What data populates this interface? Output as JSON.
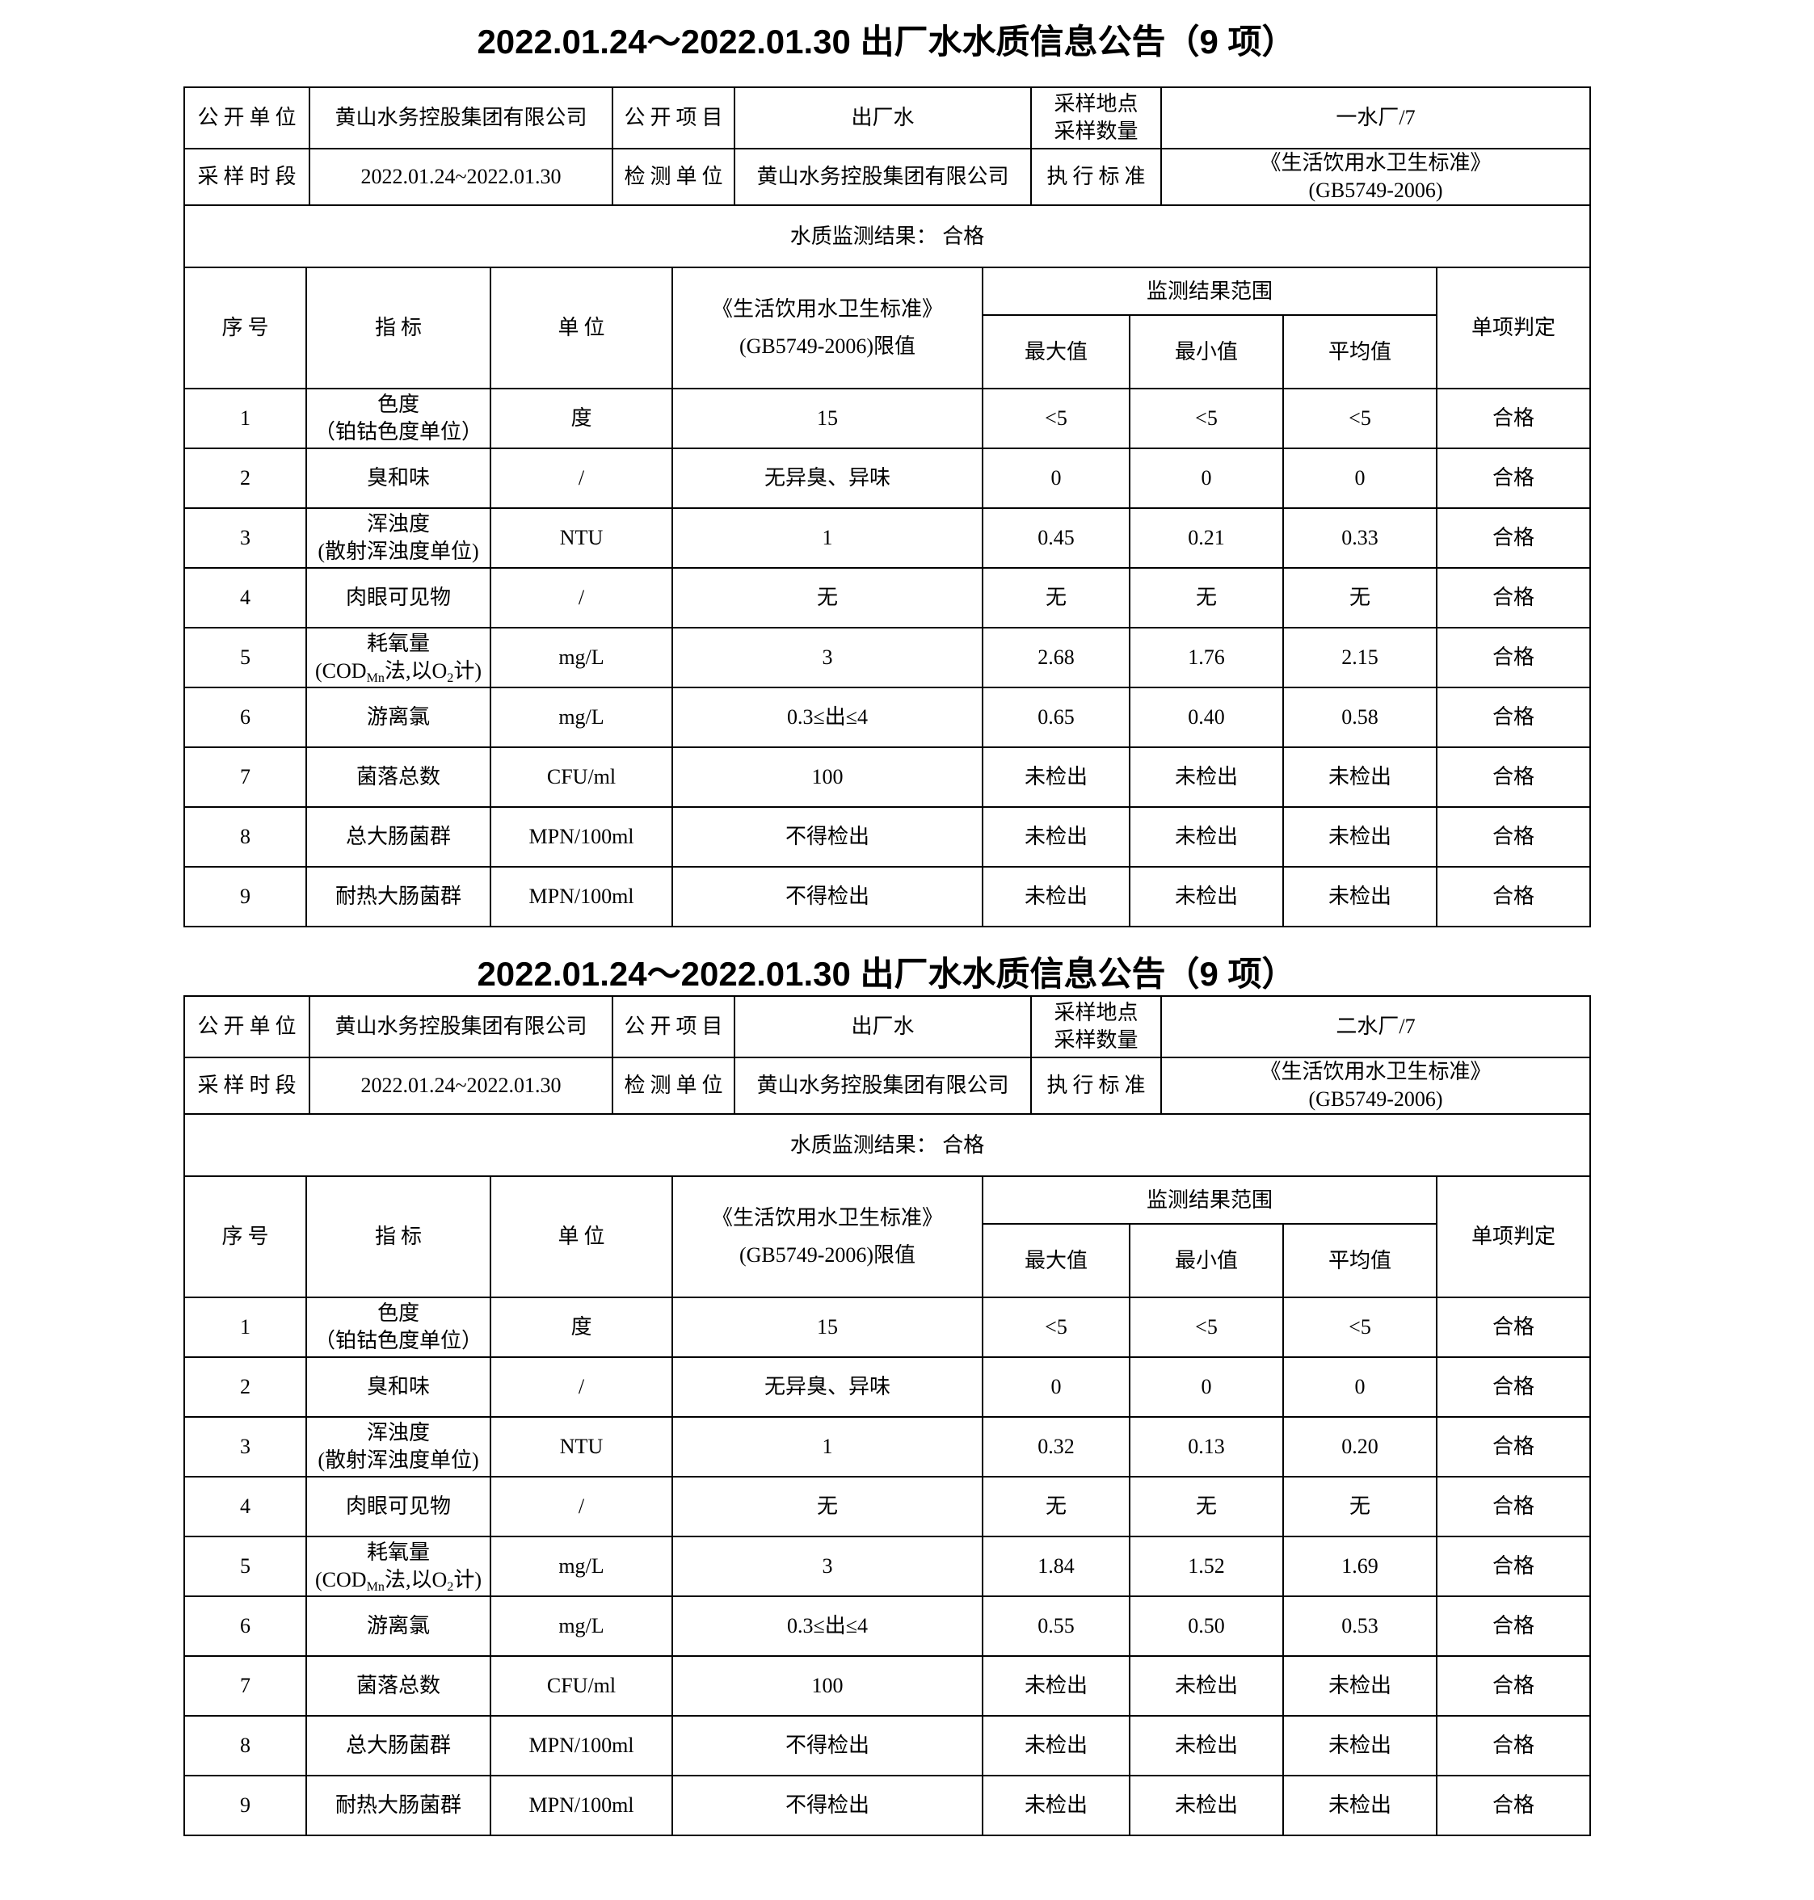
{
  "document": {
    "background_color": "#ffffff",
    "text_color": "#000000",
    "line_color": "#000000"
  },
  "tables": [
    {
      "title": "2022.01.24～2022.01.30 出厂水水质信息公告（9 项）",
      "info": {
        "public_unit_label": "公开单位",
        "public_unit": "黄山水务控股集团有限公司",
        "public_item_label": "公开项目",
        "public_item": "出厂水",
        "site_label_line1": "采样地点",
        "site_label_line2": "采样数量",
        "site_count": "一水厂/7",
        "period_label": "采样时段",
        "period": "2022.01.24~2022.01.30",
        "test_unit_label": "检测单位",
        "test_unit": "黄山水务控股集团有限公司",
        "standard_label": "执行标准",
        "standard_line1": "《生活饮用水卫生标准》",
        "standard_line2": "(GB5749-2006)"
      },
      "result_line": "水质监测结果： 合格",
      "columns": {
        "no": "序号",
        "indicator": "指标",
        "unit": "单位",
        "limit_line1": "《生活饮用水卫生标准》",
        "limit_line2": "(GB5749-2006)限值",
        "range_group": "监测结果范围",
        "max": "最大值",
        "min": "最小值",
        "avg": "平均值",
        "judgement": "单项判定"
      },
      "rows": [
        {
          "no": "1",
          "indicator": [
            "色度",
            "（铂钴色度单位）"
          ],
          "unit": "度",
          "limit": "15",
          "max": "<5",
          "min": "<5",
          "avg": "<5",
          "judge": "合格"
        },
        {
          "no": "2",
          "indicator": [
            "臭和味"
          ],
          "unit": "/",
          "limit": "无异臭、异味",
          "max": "0",
          "min": "0",
          "avg": "0",
          "judge": "合格"
        },
        {
          "no": "3",
          "indicator": [
            "浑浊度",
            "(散射浑浊度单位)"
          ],
          "unit": "NTU",
          "limit": "1",
          "max": "0.45",
          "min": "0.21",
          "avg": "0.33",
          "judge": "合格"
        },
        {
          "no": "4",
          "indicator": [
            "肉眼可见物"
          ],
          "unit": "/",
          "limit": "无",
          "max": "无",
          "min": "无",
          "avg": "无",
          "judge": "合格"
        },
        {
          "no": "5",
          "indicator": [
            "耗氧量",
            [
              {
                "t": "(COD"
              },
              {
                "t": "Mn",
                "sub": true
              },
              {
                "t": "法,以O"
              },
              {
                "t": "2",
                "sub": true
              },
              {
                "t": "计)"
              }
            ]
          ],
          "unit": "mg/L",
          "limit": "3",
          "max": "2.68",
          "min": "1.76",
          "avg": "2.15",
          "judge": "合格"
        },
        {
          "no": "6",
          "indicator": [
            "游离氯"
          ],
          "unit": "mg/L",
          "limit": "0.3≤出≤4",
          "max": "0.65",
          "min": "0.40",
          "avg": "0.58",
          "judge": "合格"
        },
        {
          "no": "7",
          "indicator": [
            "菌落总数"
          ],
          "unit": "CFU/ml",
          "limit": "100",
          "max": "未检出",
          "min": "未检出",
          "avg": "未检出",
          "judge": "合格"
        },
        {
          "no": "8",
          "indicator": [
            "总大肠菌群"
          ],
          "unit": "MPN/100ml",
          "limit": "不得检出",
          "max": "未检出",
          "min": "未检出",
          "avg": "未检出",
          "judge": "合格"
        },
        {
          "no": "9",
          "indicator": [
            "耐热大肠菌群"
          ],
          "unit": "MPN/100ml",
          "limit": "不得检出",
          "max": "未检出",
          "min": "未检出",
          "avg": "未检出",
          "judge": "合格"
        }
      ]
    },
    {
      "title": "2022.01.24～2022.01.30 出厂水水质信息公告（9 项）",
      "info": {
        "public_unit_label": "公开单位",
        "public_unit": "黄山水务控股集团有限公司",
        "public_item_label": "公开项目",
        "public_item": "出厂水",
        "site_label_line1": "采样地点",
        "site_label_line2": "采样数量",
        "site_count": "二水厂/7",
        "period_label": "采样时段",
        "period": "2022.01.24~2022.01.30",
        "test_unit_label": "检测单位",
        "test_unit": "黄山水务控股集团有限公司",
        "standard_label": "执行标准",
        "standard_line1": "《生活饮用水卫生标准》",
        "standard_line2": "(GB5749-2006)"
      },
      "result_line": "水质监测结果： 合格",
      "columns": {
        "no": "序号",
        "indicator": "指标",
        "unit": "单位",
        "limit_line1": "《生活饮用水卫生标准》",
        "limit_line2": "(GB5749-2006)限值",
        "range_group": "监测结果范围",
        "max": "最大值",
        "min": "最小值",
        "avg": "平均值",
        "judgement": "单项判定"
      },
      "rows": [
        {
          "no": "1",
          "indicator": [
            "色度",
            "（铂钴色度单位）"
          ],
          "unit": "度",
          "limit": "15",
          "max": "<5",
          "min": "<5",
          "avg": "<5",
          "judge": "合格"
        },
        {
          "no": "2",
          "indicator": [
            "臭和味"
          ],
          "unit": "/",
          "limit": "无异臭、异味",
          "max": "0",
          "min": "0",
          "avg": "0",
          "judge": "合格"
        },
        {
          "no": "3",
          "indicator": [
            "浑浊度",
            "(散射浑浊度单位)"
          ],
          "unit": "NTU",
          "limit": "1",
          "max": "0.32",
          "min": "0.13",
          "avg": "0.20",
          "judge": "合格"
        },
        {
          "no": "4",
          "indicator": [
            "肉眼可见物"
          ],
          "unit": "/",
          "limit": "无",
          "max": "无",
          "min": "无",
          "avg": "无",
          "judge": "合格"
        },
        {
          "no": "5",
          "indicator": [
            "耗氧量",
            [
              {
                "t": "(COD"
              },
              {
                "t": "Mn",
                "sub": true
              },
              {
                "t": "法,以O"
              },
              {
                "t": "2",
                "sub": true
              },
              {
                "t": "计)"
              }
            ]
          ],
          "unit": "mg/L",
          "limit": "3",
          "max": "1.84",
          "min": "1.52",
          "avg": "1.69",
          "judge": "合格"
        },
        {
          "no": "6",
          "indicator": [
            "游离氯"
          ],
          "unit": "mg/L",
          "limit": "0.3≤出≤4",
          "max": "0.55",
          "min": "0.50",
          "avg": "0.53",
          "judge": "合格"
        },
        {
          "no": "7",
          "indicator": [
            "菌落总数"
          ],
          "unit": "CFU/ml",
          "limit": "100",
          "max": "未检出",
          "min": "未检出",
          "avg": "未检出",
          "judge": "合格"
        },
        {
          "no": "8",
          "indicator": [
            "总大肠菌群"
          ],
          "unit": "MPN/100ml",
          "limit": "不得检出",
          "max": "未检出",
          "min": "未检出",
          "avg": "未检出",
          "judge": "合格"
        },
        {
          "no": "9",
          "indicator": [
            "耐热大肠菌群"
          ],
          "unit": "MPN/100ml",
          "limit": "不得检出",
          "max": "未检出",
          "min": "未检出",
          "avg": "未检出",
          "judge": "合格"
        }
      ]
    }
  ]
}
